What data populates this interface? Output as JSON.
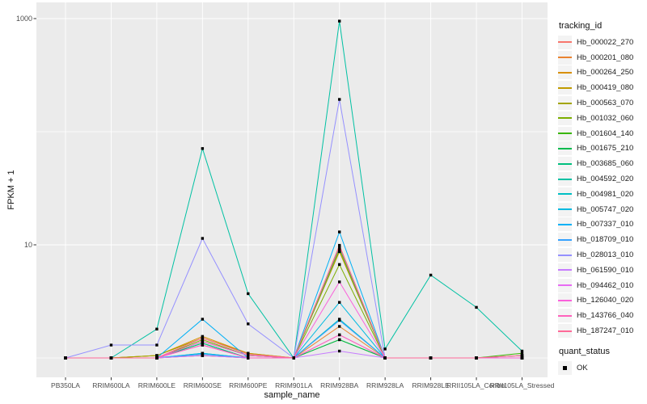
{
  "chart_data": {
    "type": "line",
    "title": "",
    "xlabel": "sample_name",
    "ylabel": "FPKM + 1",
    "y_scale": "log10",
    "y_axis": {
      "major_ticks": [
        10,
        1000
      ],
      "minor_gridlines": [
        1,
        100
      ],
      "ylim": [
        0.95,
        1200
      ]
    },
    "categories": [
      "PB350LA",
      "RRIM600LA",
      "RRIM600LE",
      "RRIM600SE",
      "RRIM600PE",
      "RRIM901LA",
      "RRIM928BA",
      "RRIM928LA",
      "RRIM928LE",
      "RRII105LA_Control",
      "RRII105LA_Stressed"
    ],
    "series": [
      {
        "name": "Hb_000022_270",
        "color": "#F8766D",
        "values": [
          1,
          1,
          1,
          1.05,
          1,
          1,
          9.9,
          1,
          1,
          1,
          1
        ]
      },
      {
        "name": "Hb_000201_080",
        "color": "#EA8331",
        "values": [
          1,
          1,
          1,
          1.05,
          1,
          1,
          1.9,
          1,
          1,
          1,
          1
        ]
      },
      {
        "name": "Hb_000264_250",
        "color": "#D89000",
        "values": [
          1,
          1,
          1.05,
          1.55,
          1.1,
          1,
          9.2,
          1,
          1,
          1,
          1
        ]
      },
      {
        "name": "Hb_000419_080",
        "color": "#C09B00",
        "values": [
          1,
          1,
          1.05,
          1.5,
          1.1,
          1,
          8.9,
          1,
          1,
          1,
          1
        ]
      },
      {
        "name": "Hb_000563_070",
        "color": "#A3A500",
        "values": [
          1,
          1,
          1.05,
          1.5,
          1.08,
          1,
          8.7,
          1,
          1,
          1,
          1
        ]
      },
      {
        "name": "Hb_001032_060",
        "color": "#7CAE00",
        "values": [
          1,
          1,
          1,
          1.45,
          1.05,
          1,
          6.7,
          1,
          1,
          1,
          1.05
        ]
      },
      {
        "name": "Hb_001604_140",
        "color": "#39B600",
        "values": [
          1,
          1,
          1,
          1.4,
          1.05,
          1,
          1.45,
          1,
          1,
          1,
          1.1
        ]
      },
      {
        "name": "Hb_001675_210",
        "color": "#00BB4E",
        "values": [
          1,
          1,
          1,
          1.35,
          1,
          1,
          1.45,
          1,
          1,
          1,
          1.05
        ]
      },
      {
        "name": "Hb_003685_060",
        "color": "#00BF7D",
        "values": [
          1,
          1,
          1,
          1.35,
          1,
          1,
          9.4,
          1,
          1,
          1,
          1
        ]
      },
      {
        "name": "Hb_004592_020",
        "color": "#00C1A3",
        "values": [
          1,
          1,
          1.8,
          71,
          3.7,
          1,
          950,
          1.2,
          5.4,
          2.8,
          1.15
        ]
      },
      {
        "name": "Hb_004981_020",
        "color": "#00BFC4",
        "values": [
          1,
          1,
          1,
          1.1,
          1,
          1,
          2.2,
          1,
          1,
          1,
          1
        ]
      },
      {
        "name": "Hb_005747_020",
        "color": "#00BAE0",
        "values": [
          1,
          1,
          1,
          1.1,
          1,
          1,
          3.1,
          1,
          1,
          1,
          1
        ]
      },
      {
        "name": "Hb_007337_010",
        "color": "#00B0F6",
        "values": [
          1,
          1,
          1,
          2.2,
          1,
          1,
          13,
          1,
          1,
          1,
          1
        ]
      },
      {
        "name": "Hb_018709_010",
        "color": "#35A2FF",
        "values": [
          1,
          1,
          1,
          1.08,
          1,
          1,
          2.15,
          1,
          1,
          1,
          1
        ]
      },
      {
        "name": "Hb_028013_010",
        "color": "#9590FF",
        "values": [
          1,
          1.3,
          1.3,
          11.4,
          2,
          1,
          193,
          1,
          1,
          1,
          1
        ]
      },
      {
        "name": "Hb_061590_010",
        "color": "#C77CFF",
        "values": [
          1,
          1,
          1,
          1.05,
          1,
          1,
          1.15,
          1,
          1,
          1,
          1
        ]
      },
      {
        "name": "Hb_094462_010",
        "color": "#E76BF3",
        "values": [
          1,
          1,
          1,
          1.3,
          1,
          1,
          1.6,
          1,
          1,
          1,
          1
        ]
      },
      {
        "name": "Hb_126040_020",
        "color": "#FA62DB",
        "values": [
          1,
          1,
          1,
          1.4,
          1.05,
          1,
          4.7,
          1,
          1,
          1,
          1
        ]
      },
      {
        "name": "Hb_143766_040",
        "color": "#FF62BC",
        "values": [
          1,
          1,
          1,
          1.3,
          1,
          1,
          1.6,
          1,
          1,
          1,
          1.05
        ]
      },
      {
        "name": "Hb_187247_010",
        "color": "#FF6A98",
        "values": [
          1,
          1,
          1,
          1.5,
          1.08,
          1,
          9.7,
          1,
          1,
          1,
          1.05
        ]
      }
    ],
    "point": {
      "shape": "square",
      "color": "#000000"
    },
    "legend": {
      "tracking_title": "tracking_id",
      "quant_title": "quant_status",
      "quant_items": [
        {
          "label": "OK"
        }
      ]
    },
    "layout": {
      "panel_bg": "#EBEBEB",
      "grid_color": "#FFFFFF",
      "tick_color": "#333333",
      "tick_label_color": "#4D4D4D",
      "legend_position": "right",
      "grid": true
    }
  }
}
